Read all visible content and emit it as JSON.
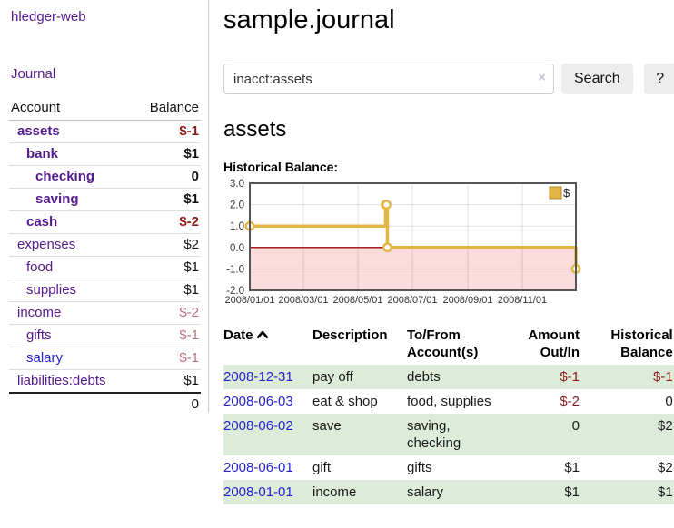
{
  "colors": {
    "link_visited": "#551a8b",
    "link_unvisited": "#2323cc",
    "negative_strong": "#8e1b1b",
    "negative_soft": "#b5737a",
    "row_stripe_green": "#dcecd9",
    "chart_line_gold": "#e3b544",
    "chart_negative_fill": "#fadcdc",
    "chart_zero_line": "#a40000",
    "chart_border": "#555555"
  },
  "sidebar": {
    "app_title": "hledger-web",
    "journal_label": "Journal",
    "accounts": {
      "headers": {
        "account": "Account",
        "balance": "Balance"
      },
      "rows": [
        {
          "name": "assets",
          "depth": 1,
          "balance": "$-1",
          "bold": true
        },
        {
          "name": "bank",
          "depth": 2,
          "balance": "$1",
          "bold": true
        },
        {
          "name": "checking",
          "depth": 3,
          "balance": "0",
          "bold": true
        },
        {
          "name": "saving",
          "depth": 3,
          "balance": "$1",
          "bold": true
        },
        {
          "name": "cash",
          "depth": 2,
          "balance": "$-2",
          "bold": true
        },
        {
          "name": "expenses",
          "depth": 1,
          "balance": "$2",
          "bold": false
        },
        {
          "name": "food",
          "depth": 2,
          "balance": "$1",
          "bold": false
        },
        {
          "name": "supplies",
          "depth": 2,
          "balance": "$1",
          "bold": false
        },
        {
          "name": "income",
          "depth": 1,
          "balance": "$-2",
          "bold": false
        },
        {
          "name": "gifts",
          "depth": 2,
          "balance": "$-1",
          "bold": false
        },
        {
          "name": "salary",
          "depth": 2,
          "balance": "$-1",
          "bold": false,
          "visited": false
        },
        {
          "name": "liabilities:debts",
          "depth": 1,
          "balance": "$1",
          "bold": false
        }
      ],
      "total": "0"
    }
  },
  "main": {
    "title": "sample.journal",
    "search": {
      "value": "inacct:assets",
      "clear_icon": "×",
      "button_label": "Search",
      "help_label": "?"
    },
    "heading": "assets",
    "chart_label": "Historical Balance:",
    "register": {
      "headers": {
        "date": "Date",
        "description": "Description",
        "account": "To/From Account(s)",
        "amount": "Amount Out/In",
        "balance": "Historical Balance"
      },
      "rows": [
        {
          "date": "2008-12-31",
          "description": "pay off",
          "accounts": "debts",
          "amount": "$-1",
          "balance": "$-1"
        },
        {
          "date": "2008-06-03",
          "description": "eat & shop",
          "accounts": "food, supplies",
          "amount": "$-2",
          "balance": "0"
        },
        {
          "date": "2008-06-02",
          "description": "save",
          "accounts": "saving, checking",
          "amount": "0",
          "balance": "$2"
        },
        {
          "date": "2008-06-01",
          "description": "gift",
          "accounts": "gifts",
          "amount": "$1",
          "balance": "$2"
        },
        {
          "date": "2008-01-01",
          "description": "income",
          "accounts": "salary",
          "amount": "$1",
          "balance": "$1"
        }
      ]
    }
  },
  "chart_data": {
    "type": "line",
    "title": "Historical Balance",
    "step": true,
    "grid": true,
    "series": [
      {
        "name": "$",
        "points": [
          [
            "2008-01-01",
            1
          ],
          [
            "2008-06-01",
            2
          ],
          [
            "2008-06-02",
            2
          ],
          [
            "2008-06-03",
            0
          ],
          [
            "2008-12-31",
            -1
          ]
        ]
      }
    ],
    "xlim": [
      "2008-01-01",
      "2008-12-31"
    ],
    "ylim": [
      -2,
      3
    ],
    "y_ticks": [
      3,
      2,
      1,
      0,
      -1,
      -2
    ],
    "x_ticks": [
      "2008/01/01",
      "2008/03/01",
      "2008/05/01",
      "2008/07/01",
      "2008/09/01",
      "2008/11/01"
    ],
    "legend": {
      "label": "$",
      "position": "top-right"
    },
    "negative_region": true
  }
}
